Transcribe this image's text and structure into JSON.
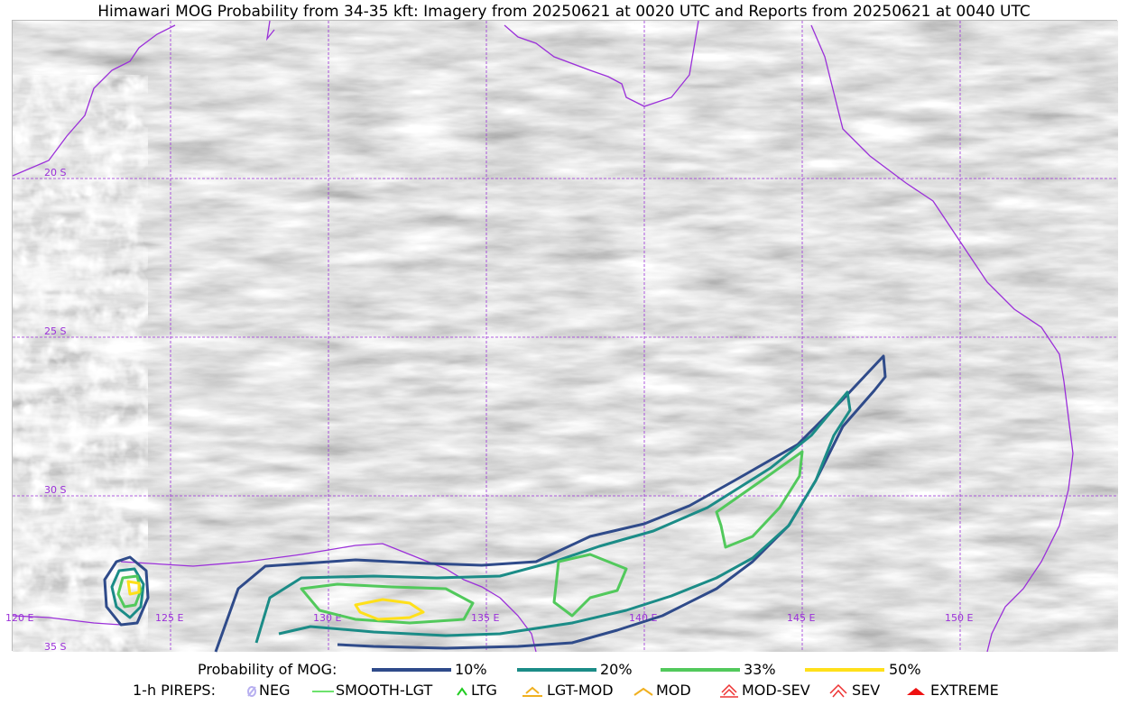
{
  "title": "Himawari MOG Probability from 34-35 kft: Imagery from 20250621 at 0020 UTC and Reports from 20250621 at 0040 UTC",
  "map": {
    "lat_labels": [
      "20 S",
      "25 S",
      "30 S",
      "35 S"
    ],
    "lon_labels": [
      "120 E",
      "125 E",
      "130 E",
      "135 E",
      "140 E",
      "145 E",
      "150 E"
    ],
    "grid_color": "#9b30d9",
    "coast_color": "#9b30d9"
  },
  "legend": {
    "prob_title": "Probability of MOG:",
    "prob_items": [
      {
        "label": "10%",
        "color": "#2f4b8a"
      },
      {
        "label": "20%",
        "color": "#1b8c87"
      },
      {
        "label": "33%",
        "color": "#52c95c"
      },
      {
        "label": "50%",
        "color": "#ffe01a"
      }
    ],
    "pirep_title": "1-h PIREPS:",
    "pirep_items": [
      {
        "label": "NEG",
        "icon": "neg-icon",
        "color": "#b8b0f0"
      },
      {
        "label": "SMOOTH-LGT",
        "icon": "line-icon",
        "color": "#3cd83c"
      },
      {
        "label": "LTG",
        "icon": "caret-icon",
        "color": "#22cc22"
      },
      {
        "label": "LGT-MOD",
        "icon": "caret-bar-icon",
        "color": "#f0b020"
      },
      {
        "label": "MOD",
        "icon": "caret-icon",
        "color": "#f0b020"
      },
      {
        "label": "MOD-SEV",
        "icon": "double-caret-bar-icon",
        "color": "#ee3333"
      },
      {
        "label": "SEV",
        "icon": "double-caret-icon",
        "color": "#ee3333"
      },
      {
        "label": "EXTREME",
        "icon": "filled-triangle-icon",
        "color": "#ee1111"
      }
    ]
  }
}
